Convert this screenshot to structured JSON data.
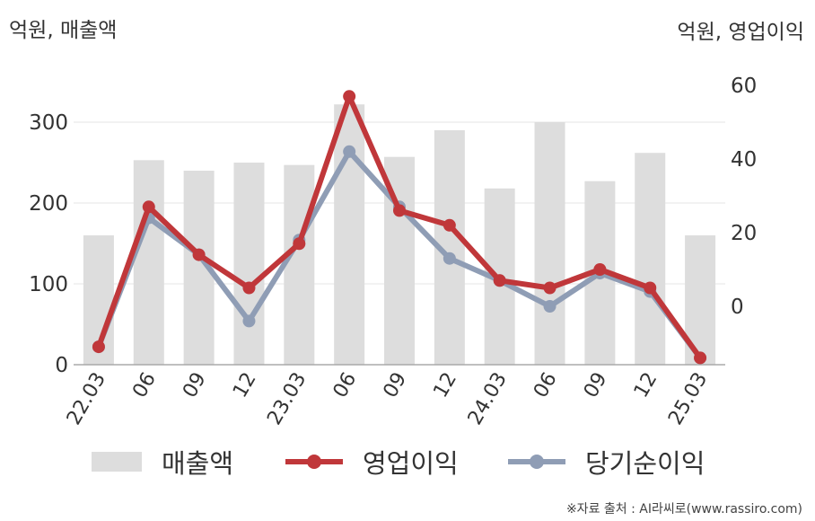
{
  "labels": {
    "left_unit": "억원, 매출액",
    "right_unit": "억원, 영업이익",
    "source": "※자료 출처 : AI라씨로(www.rassiro.com)"
  },
  "legend": {
    "bar_label": "매출액",
    "op_label": "영업이익",
    "net_label": "당기순이익"
  },
  "colors": {
    "bar": "#dddddd",
    "op": "#c0373a",
    "net": "#8f9db5",
    "grid": "#e6e6e6",
    "axis": "#aaaaaa",
    "text": "#333333"
  },
  "chart_data": {
    "type": "bar+line",
    "categories": [
      "22.03",
      "06",
      "09",
      "12",
      "23.03",
      "06",
      "09",
      "12",
      "24.03",
      "06",
      "09",
      "12",
      "25.03"
    ],
    "left_axis": {
      "ylim": [
        0,
        300
      ],
      "ticks": [
        0,
        100,
        200,
        300
      ]
    },
    "right_axis": {
      "ylim": [
        -15,
        60
      ],
      "ticks": [
        0,
        20,
        40,
        60
      ]
    },
    "series": [
      {
        "name": "매출액",
        "type": "bar",
        "axis": "left",
        "values": [
          160,
          253,
          240,
          250,
          247,
          322,
          257,
          290,
          218,
          300,
          227,
          262,
          160
        ]
      },
      {
        "name": "영업이익",
        "type": "line",
        "axis": "right",
        "values": [
          -11,
          27,
          14,
          5,
          17,
          57,
          26,
          22,
          7,
          5,
          10,
          5,
          -14
        ]
      },
      {
        "name": "당기순이익",
        "type": "line",
        "axis": "right",
        "values": [
          -11,
          24,
          14,
          -4,
          18,
          42,
          27,
          13,
          7,
          0,
          9,
          4,
          -14
        ]
      }
    ]
  }
}
